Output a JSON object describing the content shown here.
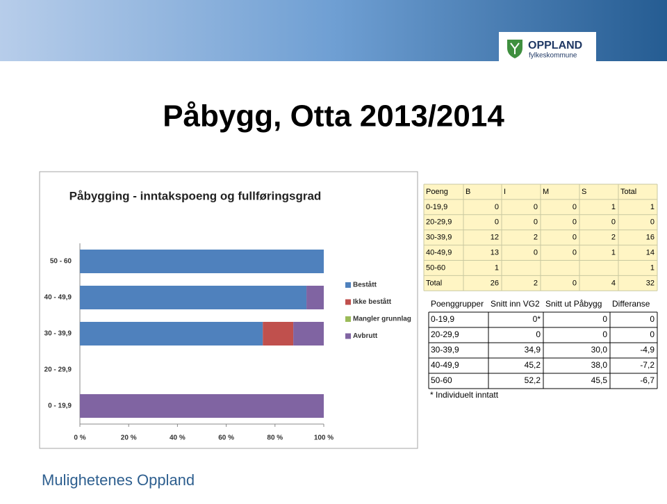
{
  "header": {
    "logo_name": "OPPLAND",
    "logo_sub": "fylkeskommune"
  },
  "title": "Påbygg, Otta 2013/2014",
  "chart_data": {
    "type": "stacked-bar-horizontal",
    "title": "Påbygging - inntakspoeng og fullføringsgrad",
    "categories": [
      "0 - 19,9",
      "20 - 29,9",
      "30 - 39,9",
      "40 - 49,9",
      "50 - 60"
    ],
    "series": [
      {
        "name": "Bestått",
        "color": "#4f81bd",
        "values": [
          0,
          0,
          75,
          92.9,
          100
        ]
      },
      {
        "name": "Ikke bestått",
        "color": "#c0504d",
        "values": [
          0,
          0,
          12.5,
          0,
          0
        ]
      },
      {
        "name": "Mangler grunnlag",
        "color": "#9bbb59",
        "values": [
          0,
          0,
          0,
          0,
          0
        ]
      },
      {
        "name": "Avbrutt",
        "color": "#8064a2",
        "values": [
          100,
          0,
          12.5,
          7.1,
          0
        ]
      }
    ],
    "xlim": [
      0,
      100
    ],
    "xticks": [
      {
        "value": 0,
        "label": "0 %"
      },
      {
        "value": 20,
        "label": "20 %"
      },
      {
        "value": 40,
        "label": "40 %"
      },
      {
        "value": 60,
        "label": "60 %"
      },
      {
        "value": 80,
        "label": "80 %"
      },
      {
        "value": 100,
        "label": "100 %"
      }
    ],
    "legend": "right"
  },
  "table1": {
    "header": [
      "Poeng",
      "B",
      "I",
      "M",
      "S",
      "Total"
    ],
    "rows": [
      [
        "0-19,9",
        "0",
        "0",
        "0",
        "1",
        "1"
      ],
      [
        "20-29,9",
        "0",
        "0",
        "0",
        "0",
        "0"
      ],
      [
        "30-39,9",
        "12",
        "2",
        "0",
        "2",
        "16"
      ],
      [
        "40-49,9",
        "13",
        "0",
        "0",
        "1",
        "14"
      ],
      [
        "50-60",
        "1",
        null,
        null,
        null,
        "1"
      ],
      [
        "Total",
        "26",
        "2",
        "0",
        "4",
        "32"
      ]
    ]
  },
  "table2": {
    "header": [
      "Poenggrupper",
      "Snitt inn VG2",
      "Snitt ut Påbygg",
      "Differanse"
    ],
    "rows": [
      [
        "0-19,9",
        "0*",
        "0",
        "0"
      ],
      [
        "20-29,9",
        "0",
        "0",
        "0"
      ],
      [
        "30-39,9",
        "34,9",
        "30,0",
        "-4,9"
      ],
      [
        "40-49,9",
        "45,2",
        "38,0",
        "-7,2"
      ],
      [
        "50-60",
        "52,2",
        "45,5",
        "-6,7"
      ]
    ],
    "note": "* Individuelt inntatt"
  },
  "footer": "Mulighetenes Oppland"
}
